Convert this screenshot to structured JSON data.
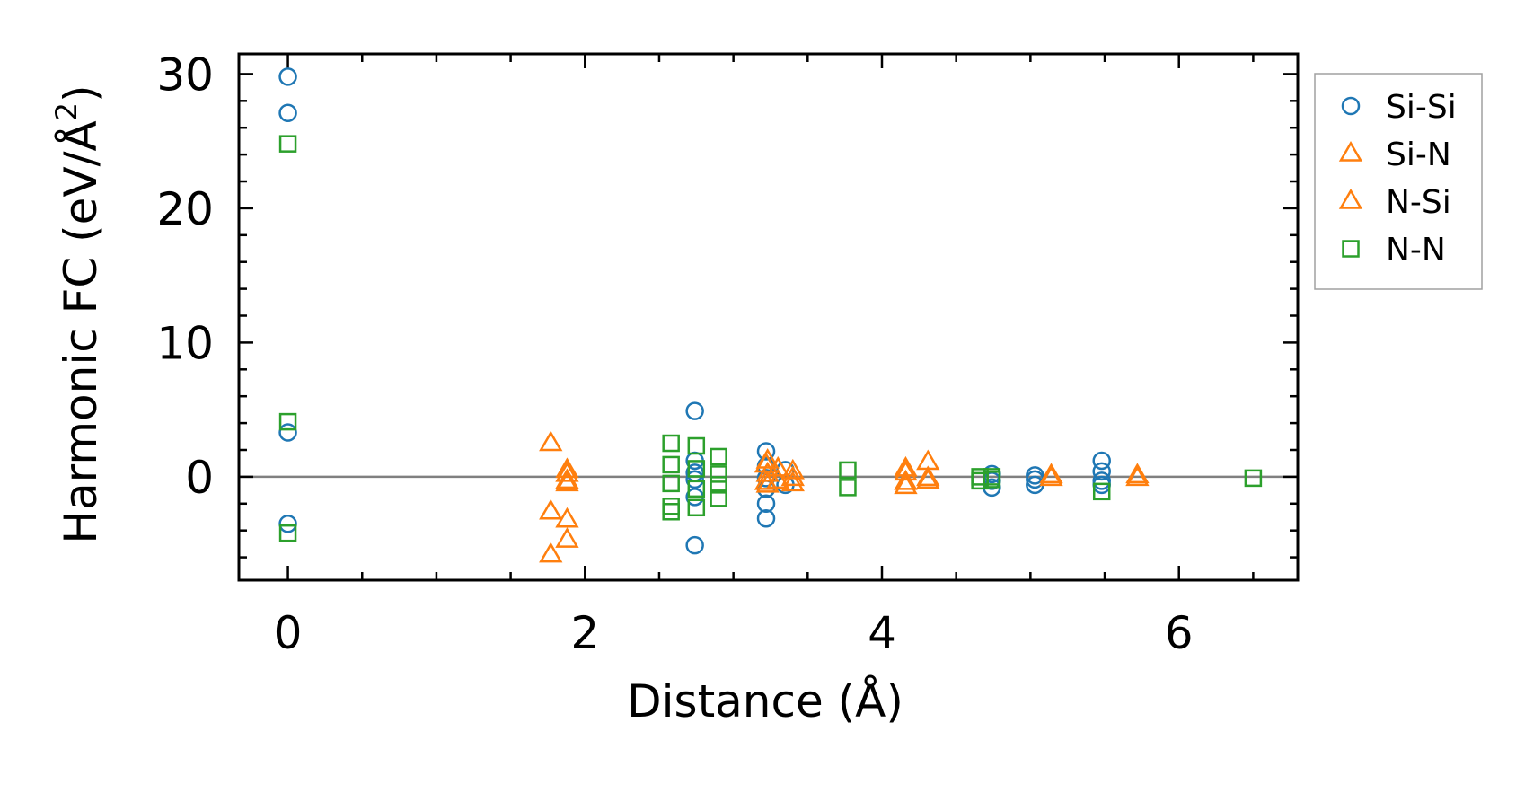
{
  "chart_data": {
    "type": "scatter",
    "title": "",
    "xlabel": "Distance (Å)",
    "ylabel": "Harmonic FC (eV/Å",
    "ylabel_superscript": "2",
    "ylabel_suffix": ")",
    "xlim": [
      -0.33,
      6.8
    ],
    "ylim": [
      -7.7,
      31.5
    ],
    "xticks": [
      0,
      2,
      4,
      6
    ],
    "xtick_labels": [
      "0",
      "2",
      "4",
      "6"
    ],
    "yticks": [
      0,
      10,
      20,
      30
    ],
    "ytick_labels": [
      "0",
      "10",
      "20",
      "30"
    ],
    "x_minor_step": 0.5,
    "y_minor_step": 2,
    "zero_line": true,
    "grid": false,
    "legend_position": "outside-right",
    "series": [
      {
        "name": "Si-Si",
        "marker": "circle",
        "color": "#1f77b4",
        "points": [
          [
            0,
            29.8
          ],
          [
            0,
            27.1
          ],
          [
            0,
            3.3
          ],
          [
            0,
            -3.5
          ],
          [
            2.74,
            4.9
          ],
          [
            2.74,
            1.2
          ],
          [
            2.74,
            0.3
          ],
          [
            2.74,
            -0.2
          ],
          [
            2.74,
            -1.5
          ],
          [
            2.74,
            -5.1
          ],
          [
            3.22,
            1.9
          ],
          [
            3.22,
            0.8
          ],
          [
            3.22,
            -0.1
          ],
          [
            3.22,
            -0.9
          ],
          [
            3.22,
            -2.0
          ],
          [
            3.22,
            -3.1
          ],
          [
            3.35,
            0.5
          ],
          [
            3.35,
            -0.6
          ],
          [
            4.74,
            0.2
          ],
          [
            4.74,
            -0.3
          ],
          [
            4.74,
            -0.8
          ],
          [
            5.03,
            0.1
          ],
          [
            5.03,
            -0.2
          ],
          [
            5.03,
            -0.6
          ],
          [
            5.48,
            1.2
          ],
          [
            5.48,
            0.4
          ],
          [
            5.48,
            -0.3
          ],
          [
            5.48,
            -0.6
          ]
        ]
      },
      {
        "name": "Si-N",
        "marker": "triangle",
        "color": "#ff7f0e",
        "points": [
          [
            1.77,
            2.5
          ],
          [
            1.77,
            -2.6
          ],
          [
            1.77,
            -5.8
          ],
          [
            1.88,
            0.5
          ],
          [
            1.88,
            -0.3
          ],
          [
            1.88,
            -3.2
          ],
          [
            1.88,
            -4.7
          ],
          [
            3.22,
            0.9
          ],
          [
            3.22,
            -0.4
          ],
          [
            3.4,
            0.4
          ],
          [
            3.4,
            -0.5
          ],
          [
            4.16,
            0.6
          ],
          [
            4.16,
            -0.7
          ],
          [
            4.31,
            1.1
          ],
          [
            4.31,
            -0.3
          ],
          [
            5.14,
            0.1
          ],
          [
            5.72,
            0.1
          ]
        ]
      },
      {
        "name": "N-Si",
        "marker": "triangle",
        "color": "#ff7f0e",
        "points": [
          [
            1.88,
            0.2
          ],
          [
            1.88,
            -0.5
          ],
          [
            3.23,
            1.2
          ],
          [
            3.23,
            0.2
          ],
          [
            3.23,
            -0.6
          ],
          [
            3.3,
            0.6
          ],
          [
            3.3,
            -0.3
          ],
          [
            3.4,
            -0.1
          ],
          [
            4.16,
            0.3
          ],
          [
            4.16,
            -0.4
          ],
          [
            4.31,
            -0.1
          ],
          [
            5.14,
            -0.1
          ],
          [
            5.72,
            -0.1
          ]
        ]
      },
      {
        "name": "N-N",
        "marker": "square",
        "color": "#2ca02c",
        "points": [
          [
            0,
            24.8
          ],
          [
            0,
            4.1
          ],
          [
            0,
            -4.2
          ],
          [
            2.58,
            2.5
          ],
          [
            2.58,
            0.9
          ],
          [
            2.58,
            -0.5
          ],
          [
            2.58,
            -2.2
          ],
          [
            2.58,
            -2.6
          ],
          [
            2.75,
            2.3
          ],
          [
            2.75,
            0.6
          ],
          [
            2.75,
            -0.9
          ],
          [
            2.75,
            -2.3
          ],
          [
            2.9,
            1.5
          ],
          [
            2.9,
            0.2
          ],
          [
            2.9,
            -0.6
          ],
          [
            2.9,
            -1.6
          ],
          [
            3.77,
            0.5
          ],
          [
            3.77,
            -0.8
          ],
          [
            4.66,
            0.0
          ],
          [
            4.66,
            -0.3
          ],
          [
            4.74,
            0.0
          ],
          [
            4.74,
            -0.2
          ],
          [
            5.48,
            -1.1
          ],
          [
            6.5,
            -0.1
          ]
        ]
      }
    ]
  }
}
